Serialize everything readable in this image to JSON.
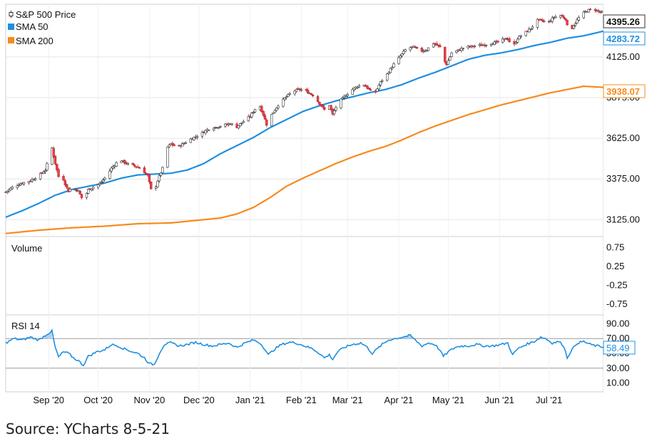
{
  "source_text": "Source: YCharts 8-5-21",
  "colors": {
    "up": "#ffffff",
    "down": "#e8404a",
    "sma50": "#1f8fe0",
    "sma200": "#f78a1d",
    "rsi": "#1f8fe0",
    "grid": "#e5e5e5",
    "axis": "#555555"
  },
  "chart_data": [
    {
      "type": "candlestick",
      "panel": "price",
      "legend": [
        {
          "name": "S&P 500 Price",
          "icon": "candlestick-icon"
        },
        {
          "name": "SMA 50",
          "color": "#1f8fe0"
        },
        {
          "name": "SMA 200",
          "color": "#f78a1d"
        }
      ],
      "y_ticks": [
        "4125.00",
        "3875.00",
        "3625.00",
        "3375.00",
        "3125.00"
      ],
      "y_tick_values": [
        4125,
        3875,
        3625,
        3375,
        3125
      ],
      "ylim": [
        3030,
        4440
      ],
      "x_ticks": [
        "Sep '20",
        "Oct '20",
        "Nov '20",
        "Dec '20",
        "Jan '21",
        "Feb '21",
        "Mar '21",
        "Apr '21",
        "May '21",
        "Jun '21",
        "Jul '21"
      ],
      "x_tick_days": [
        26,
        56,
        87,
        117,
        148,
        179,
        207,
        238,
        268,
        299,
        329
      ],
      "x_range_days": [
        0,
        362
      ],
      "last_values": {
        "price": "4395.26",
        "sma50": "4283.72",
        "sma200": "3938.07"
      },
      "price_anchors": [
        [
          0,
          3295
        ],
        [
          5,
          3330
        ],
        [
          10,
          3350
        ],
        [
          15,
          3365
        ],
        [
          20,
          3395
        ],
        [
          24,
          3430
        ],
        [
          28,
          3565
        ],
        [
          30,
          3470
        ],
        [
          32,
          3390
        ],
        [
          34,
          3400
        ],
        [
          36,
          3345
        ],
        [
          38,
          3300
        ],
        [
          40,
          3325
        ],
        [
          44,
          3300
        ],
        [
          47,
          3240
        ],
        [
          50,
          3310
        ],
        [
          54,
          3330
        ],
        [
          57,
          3345
        ],
        [
          60,
          3380
        ],
        [
          64,
          3440
        ],
        [
          69,
          3495
        ],
        [
          73,
          3470
        ],
        [
          78,
          3455
        ],
        [
          82,
          3440
        ],
        [
          86,
          3395
        ],
        [
          88,
          3310
        ],
        [
          90,
          3300
        ],
        [
          92,
          3365
        ],
        [
          95,
          3440
        ],
        [
          97,
          3560
        ],
        [
          100,
          3590
        ],
        [
          104,
          3570
        ],
        [
          108,
          3595
        ],
        [
          112,
          3620
        ],
        [
          116,
          3640
        ],
        [
          120,
          3665
        ],
        [
          124,
          3690
        ],
        [
          128,
          3695
        ],
        [
          132,
          3705
        ],
        [
          136,
          3715
        ],
        [
          140,
          3695
        ],
        [
          144,
          3730
        ],
        [
          148,
          3760
        ],
        [
          151,
          3805
        ],
        [
          154,
          3820
        ],
        [
          156,
          3770
        ],
        [
          158,
          3710
        ],
        [
          161,
          3770
        ],
        [
          165,
          3830
        ],
        [
          170,
          3880
        ],
        [
          174,
          3915
        ],
        [
          178,
          3925
        ],
        [
          182,
          3915
        ],
        [
          186,
          3890
        ],
        [
          190,
          3840
        ],
        [
          193,
          3800
        ],
        [
          196,
          3830
        ],
        [
          198,
          3770
        ],
        [
          201,
          3840
        ],
        [
          205,
          3880
        ],
        [
          209,
          3920
        ],
        [
          213,
          3945
        ],
        [
          217,
          3955
        ],
        [
          220,
          3925
        ],
        [
          223,
          3890
        ],
        [
          227,
          3970
        ],
        [
          231,
          4020
        ],
        [
          235,
          4080
        ],
        [
          239,
          4130
        ],
        [
          243,
          4180
        ],
        [
          247,
          4185
        ],
        [
          251,
          4160
        ],
        [
          255,
          4170
        ],
        [
          259,
          4210
        ],
        [
          263,
          4185
        ],
        [
          265,
          4110
        ],
        [
          267,
          4080
        ],
        [
          270,
          4150
        ],
        [
          274,
          4165
        ],
        [
          278,
          4185
        ],
        [
          282,
          4190
        ],
        [
          286,
          4195
        ],
        [
          290,
          4200
        ],
        [
          294,
          4210
        ],
        [
          298,
          4215
        ],
        [
          301,
          4230
        ],
        [
          304,
          4240
        ],
        [
          307,
          4180
        ],
        [
          310,
          4240
        ],
        [
          314,
          4270
        ],
        [
          318,
          4300
        ],
        [
          322,
          4350
        ],
        [
          326,
          4345
        ],
        [
          329,
          4340
        ],
        [
          332,
          4370
        ],
        [
          336,
          4380
        ],
        [
          339,
          4360
        ],
        [
          341,
          4270
        ],
        [
          344,
          4320
        ],
        [
          348,
          4380
        ],
        [
          352,
          4410
        ],
        [
          356,
          4420
        ],
        [
          359,
          4405
        ],
        [
          362,
          4395
        ]
      ],
      "sma50_anchors": [
        [
          0,
          3140
        ],
        [
          10,
          3180
        ],
        [
          20,
          3225
        ],
        [
          30,
          3275
        ],
        [
          40,
          3310
        ],
        [
          50,
          3330
        ],
        [
          60,
          3350
        ],
        [
          70,
          3380
        ],
        [
          80,
          3400
        ],
        [
          90,
          3405
        ],
        [
          100,
          3410
        ],
        [
          110,
          3430
        ],
        [
          120,
          3470
        ],
        [
          130,
          3530
        ],
        [
          140,
          3580
        ],
        [
          150,
          3630
        ],
        [
          160,
          3690
        ],
        [
          170,
          3740
        ],
        [
          180,
          3790
        ],
        [
          190,
          3825
        ],
        [
          200,
          3855
        ],
        [
          210,
          3880
        ],
        [
          220,
          3905
        ],
        [
          230,
          3925
        ],
        [
          240,
          3955
        ],
        [
          250,
          3995
        ],
        [
          260,
          4030
        ],
        [
          270,
          4070
        ],
        [
          280,
          4110
        ],
        [
          290,
          4135
        ],
        [
          300,
          4150
        ],
        [
          310,
          4170
        ],
        [
          320,
          4195
        ],
        [
          330,
          4215
        ],
        [
          340,
          4240
        ],
        [
          350,
          4255
        ],
        [
          362,
          4283.72
        ]
      ],
      "sma200_anchors": [
        [
          0,
          3040
        ],
        [
          20,
          3060
        ],
        [
          40,
          3075
        ],
        [
          60,
          3085
        ],
        [
          80,
          3100
        ],
        [
          100,
          3105
        ],
        [
          110,
          3115
        ],
        [
          130,
          3135
        ],
        [
          140,
          3160
        ],
        [
          150,
          3200
        ],
        [
          160,
          3260
        ],
        [
          170,
          3330
        ],
        [
          180,
          3380
        ],
        [
          190,
          3425
        ],
        [
          200,
          3470
        ],
        [
          210,
          3510
        ],
        [
          220,
          3545
        ],
        [
          230,
          3575
        ],
        [
          240,
          3615
        ],
        [
          250,
          3660
        ],
        [
          260,
          3700
        ],
        [
          270,
          3735
        ],
        [
          280,
          3770
        ],
        [
          290,
          3800
        ],
        [
          300,
          3830
        ],
        [
          310,
          3855
        ],
        [
          320,
          3880
        ],
        [
          330,
          3905
        ],
        [
          340,
          3925
        ],
        [
          350,
          3945
        ],
        [
          362,
          3938.07
        ]
      ]
    },
    {
      "type": "bar",
      "panel": "volume",
      "series": [
        {
          "name": "Volume",
          "values": []
        }
      ],
      "y_ticks": [
        "0.75",
        "0.25",
        "-0.25",
        "-0.75"
      ],
      "y_tick_values": [
        0.75,
        0.25,
        -0.25,
        -0.75
      ],
      "ylim": [
        -1,
        1
      ]
    },
    {
      "type": "line",
      "panel": "rsi",
      "series": [
        {
          "name": "RSI 14"
        }
      ],
      "y_ticks": [
        "90.00",
        "70.00",
        "50.00",
        "30.00",
        "10.00"
      ],
      "y_tick_values": [
        90,
        70,
        50,
        30,
        10
      ],
      "ylim": [
        0,
        100
      ],
      "reference_lines": [
        70,
        30
      ],
      "last_value": "58.49",
      "rsi_anchors": [
        [
          0,
          64
        ],
        [
          5,
          70
        ],
        [
          10,
          68
        ],
        [
          15,
          72
        ],
        [
          20,
          68
        ],
        [
          25,
          76
        ],
        [
          28,
          80
        ],
        [
          30,
          58
        ],
        [
          32,
          45
        ],
        [
          35,
          52
        ],
        [
          38,
          50
        ],
        [
          41,
          44
        ],
        [
          44,
          40
        ],
        [
          47,
          34
        ],
        [
          50,
          46
        ],
        [
          55,
          52
        ],
        [
          60,
          55
        ],
        [
          64,
          62
        ],
        [
          68,
          60
        ],
        [
          72,
          56
        ],
        [
          77,
          52
        ],
        [
          80,
          50
        ],
        [
          84,
          44
        ],
        [
          87,
          36
        ],
        [
          90,
          35
        ],
        [
          93,
          50
        ],
        [
          96,
          62
        ],
        [
          100,
          64
        ],
        [
          105,
          60
        ],
        [
          110,
          62
        ],
        [
          115,
          65
        ],
        [
          120,
          62
        ],
        [
          125,
          60
        ],
        [
          130,
          62
        ],
        [
          135,
          64
        ],
        [
          140,
          58
        ],
        [
          145,
          64
        ],
        [
          150,
          68
        ],
        [
          154,
          64
        ],
        [
          157,
          56
        ],
        [
          159,
          48
        ],
        [
          163,
          56
        ],
        [
          167,
          62
        ],
        [
          172,
          65
        ],
        [
          176,
          64
        ],
        [
          181,
          60
        ],
        [
          186,
          56
        ],
        [
          190,
          50
        ],
        [
          193,
          44
        ],
        [
          196,
          48
        ],
        [
          198,
          42
        ],
        [
          201,
          52
        ],
        [
          205,
          58
        ],
        [
          210,
          62
        ],
        [
          215,
          64
        ],
        [
          218,
          60
        ],
        [
          222,
          50
        ],
        [
          228,
          62
        ],
        [
          232,
          68
        ],
        [
          236,
          70
        ],
        [
          240,
          72
        ],
        [
          245,
          74
        ],
        [
          248,
          68
        ],
        [
          252,
          60
        ],
        [
          256,
          64
        ],
        [
          260,
          62
        ],
        [
          263,
          54
        ],
        [
          265,
          46
        ],
        [
          268,
          52
        ],
        [
          272,
          58
        ],
        [
          276,
          60
        ],
        [
          280,
          60
        ],
        [
          285,
          62
        ],
        [
          290,
          60
        ],
        [
          295,
          60
        ],
        [
          300,
          62
        ],
        [
          304,
          64
        ],
        [
          307,
          48
        ],
        [
          310,
          56
        ],
        [
          315,
          62
        ],
        [
          320,
          66
        ],
        [
          324,
          72
        ],
        [
          327,
          70
        ],
        [
          331,
          64
        ],
        [
          335,
          66
        ],
        [
          338,
          60
        ],
        [
          340,
          44
        ],
        [
          342,
          52
        ],
        [
          346,
          64
        ],
        [
          350,
          66
        ],
        [
          354,
          62
        ],
        [
          358,
          60
        ],
        [
          362,
          58.49
        ]
      ]
    }
  ]
}
